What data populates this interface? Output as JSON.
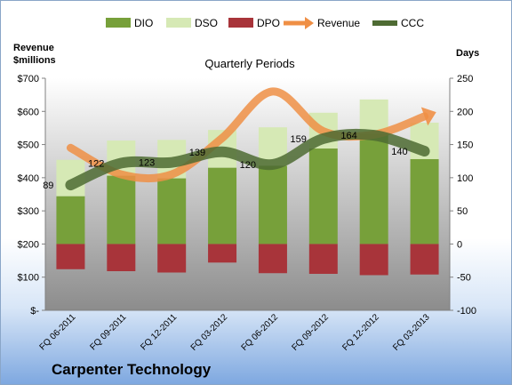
{
  "chart_data": {
    "type": "bar",
    "title": "Quarterly Periods",
    "categories": [
      "FQ 06-2011",
      "FQ 09-2011",
      "FQ 12-2011",
      "FQ 03-2012",
      "FQ 06-2012",
      "FQ 09-2012",
      "FQ 12-2012",
      "FQ 03-2013"
    ],
    "y_left": {
      "label_line1": "Revenue",
      "label_line2": "$millions",
      "ticks": [
        "$-",
        "$100",
        "$200",
        "$300",
        "$400",
        "$500",
        "$600",
        "$700"
      ],
      "ylim": [
        0,
        700
      ]
    },
    "y_right": {
      "label": "Days",
      "ticks": [
        "-100",
        "-50",
        "0",
        "50",
        "100",
        "150",
        "200",
        "250"
      ],
      "ylim": [
        -100,
        250
      ]
    },
    "legend": [
      "DIO",
      "DSO",
      "DPO",
      "Revenue",
      "CCC"
    ],
    "series": [
      {
        "name": "DIO",
        "axis": "right",
        "values": [
          72,
          103,
          99,
          115,
          118,
          144,
          166,
          128
        ]
      },
      {
        "name": "DSO",
        "axis": "right",
        "values": [
          55,
          53,
          58,
          57,
          58,
          54,
          52,
          55
        ]
      },
      {
        "name": "DPO",
        "axis": "right",
        "values": [
          -38,
          -41,
          -43,
          -28,
          -44,
          -45,
          -47,
          -46
        ]
      },
      {
        "name": "Revenue",
        "axis": "left",
        "values": [
          490,
          410,
          410,
          520,
          660,
          540,
          530,
          585
        ]
      },
      {
        "name": "CCC",
        "axis": "right",
        "values": [
          89,
          122,
          123,
          139,
          120,
          159,
          164,
          140
        ]
      }
    ],
    "data_labels": [
      "89",
      "122",
      "123",
      "139",
      "120",
      "159",
      "164",
      "140"
    ],
    "colors": {
      "DIO": "#77a03a",
      "DSO": "#d6e9b5",
      "DPO": "#a8343a",
      "Revenue": "#ef8f45",
      "CCC": "#4e6b33"
    },
    "grid": false,
    "legend_position": "top"
  },
  "footer": {
    "company": "Carpenter Technology"
  }
}
